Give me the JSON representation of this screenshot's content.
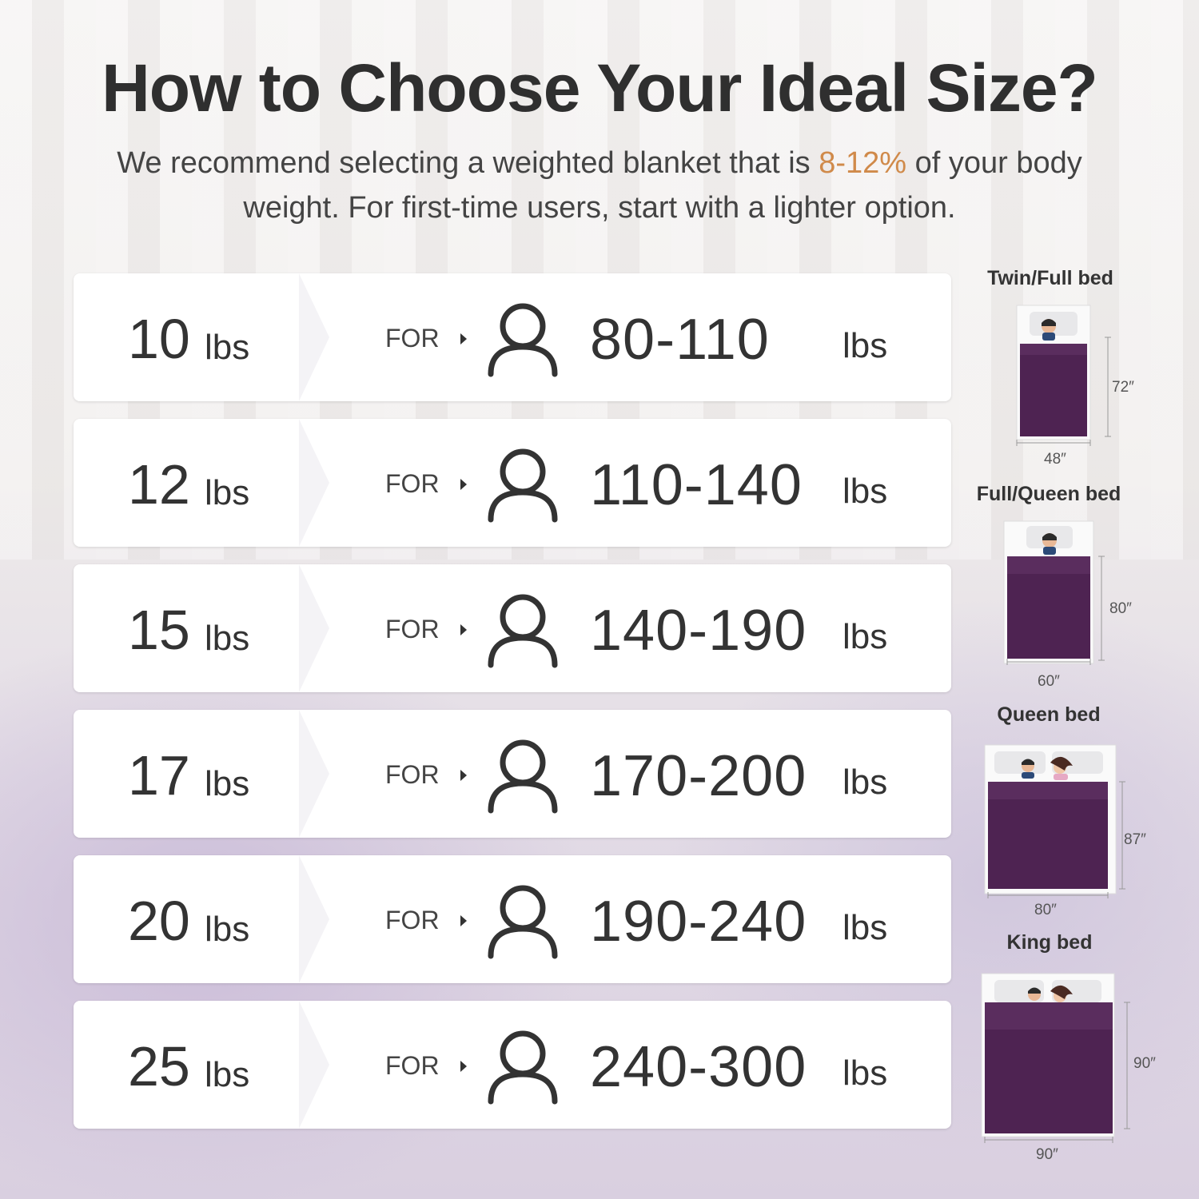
{
  "header": {
    "title": "How to Choose Your Ideal Size?",
    "subtitle_before": "We recommend selecting a weighted blanket that is ",
    "subtitle_accent": "8-12%",
    "subtitle_after": " of your body weight. For first-time users, start with a lighter option.",
    "accent_color": "#d08a4a"
  },
  "rows": [
    {
      "weight": "10",
      "unit": "lbs",
      "for": "FOR",
      "range": "80-110",
      "range_unit": "lbs"
    },
    {
      "weight": "12",
      "unit": "lbs",
      "for": "FOR",
      "range": "110-140",
      "range_unit": "lbs"
    },
    {
      "weight": "15",
      "unit": "lbs",
      "for": "FOR",
      "range": "140-190",
      "range_unit": "lbs"
    },
    {
      "weight": "17",
      "unit": "lbs",
      "for": "FOR",
      "range": "170-200",
      "range_unit": "lbs"
    },
    {
      "weight": "20",
      "unit": "lbs",
      "for": "FOR",
      "range": "190-240",
      "range_unit": "lbs"
    },
    {
      "weight": "25",
      "unit": "lbs",
      "for": "FOR",
      "range": "240-300",
      "range_unit": "lbs"
    }
  ],
  "beds": [
    {
      "label": "Twin/Full bed",
      "length": "72″",
      "width": "48″"
    },
    {
      "label": "Full/Queen bed",
      "length": "80″",
      "width": "60″"
    },
    {
      "label": "Queen bed",
      "length": "87″",
      "width": "80″"
    },
    {
      "label": "King bed",
      "length": "90″",
      "width": "90″"
    }
  ],
  "colors": {
    "blanket": "#4e2352",
    "blanket_fold": "#5a2d5e",
    "text": "#333333"
  },
  "icons": {
    "person": "person-outline-icon",
    "arrow": "triangle-right-icon"
  }
}
